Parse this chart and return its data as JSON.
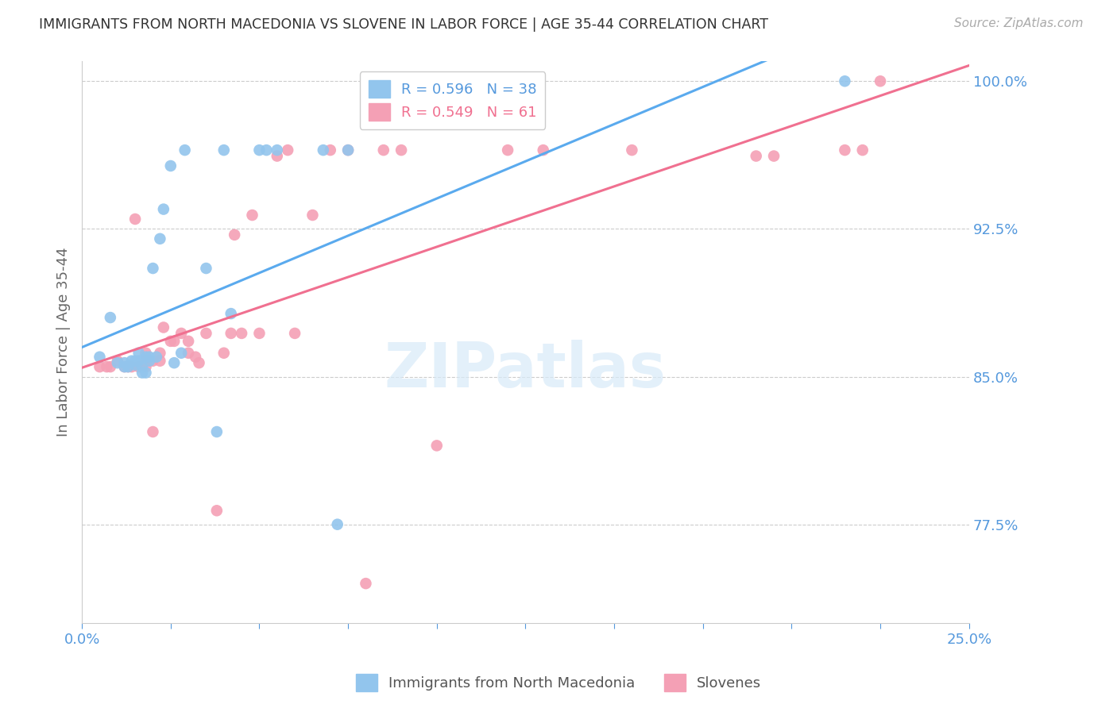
{
  "title": "IMMIGRANTS FROM NORTH MACEDONIA VS SLOVENE IN LABOR FORCE | AGE 35-44 CORRELATION CHART",
  "source": "Source: ZipAtlas.com",
  "ylabel": "In Labor Force | Age 35-44",
  "xlim": [
    0.0,
    0.25
  ],
  "ylim": [
    0.725,
    1.01
  ],
  "yticks": [
    0.775,
    0.85,
    0.925,
    1.0
  ],
  "ytick_labels": [
    "77.5%",
    "85.0%",
    "92.5%",
    "100.0%"
  ],
  "xticks": [
    0.0,
    0.025,
    0.05,
    0.075,
    0.1,
    0.125,
    0.15,
    0.175,
    0.2,
    0.225,
    0.25
  ],
  "xtick_labels": [
    "0.0%",
    "",
    "",
    "",
    "",
    "",
    "",
    "",
    "",
    "",
    "25.0%"
  ],
  "blue_color": "#92C5ED",
  "pink_color": "#F4A0B5",
  "line_blue": "#5AAAEE",
  "line_pink": "#F07090",
  "tick_label_color": "#5599DD",
  "watermark_color": "#D8EAF8",
  "watermark": "ZIPatlas",
  "legend_R_blue": "0.596",
  "legend_N_blue": "38",
  "legend_R_pink": "0.549",
  "legend_N_pink": "61",
  "legend_text_blue": "#5599DD",
  "legend_text_pink": "#F07090",
  "blue_scatter_x": [
    0.005,
    0.008,
    0.01,
    0.012,
    0.012,
    0.013,
    0.014,
    0.015,
    0.015,
    0.016,
    0.016,
    0.017,
    0.017,
    0.018,
    0.018,
    0.019,
    0.019,
    0.02,
    0.021,
    0.022,
    0.023,
    0.025,
    0.026,
    0.028,
    0.029,
    0.035,
    0.038,
    0.04,
    0.042,
    0.05,
    0.052,
    0.055,
    0.068,
    0.072,
    0.075,
    0.215
  ],
  "blue_scatter_y": [
    0.86,
    0.88,
    0.857,
    0.857,
    0.855,
    0.855,
    0.858,
    0.856,
    0.858,
    0.858,
    0.862,
    0.855,
    0.852,
    0.86,
    0.852,
    0.858,
    0.86,
    0.905,
    0.86,
    0.92,
    0.935,
    0.957,
    0.857,
    0.862,
    0.965,
    0.905,
    0.822,
    0.965,
    0.882,
    0.965,
    0.965,
    0.965,
    0.965,
    0.775,
    0.965,
    1.0
  ],
  "pink_scatter_x": [
    0.005,
    0.007,
    0.008,
    0.01,
    0.012,
    0.013,
    0.014,
    0.015,
    0.016,
    0.018,
    0.018,
    0.018,
    0.02,
    0.02,
    0.022,
    0.022,
    0.023,
    0.025,
    0.026,
    0.028,
    0.03,
    0.03,
    0.032,
    0.033,
    0.035,
    0.038,
    0.04,
    0.042,
    0.043,
    0.045,
    0.048,
    0.05,
    0.055,
    0.058,
    0.06,
    0.065,
    0.07,
    0.075,
    0.08,
    0.085,
    0.09,
    0.1,
    0.12,
    0.13,
    0.155,
    0.19,
    0.195,
    0.215,
    0.22,
    0.225
  ],
  "pink_scatter_y": [
    0.855,
    0.855,
    0.855,
    0.858,
    0.855,
    0.855,
    0.855,
    0.93,
    0.855,
    0.855,
    0.858,
    0.862,
    0.822,
    0.858,
    0.862,
    0.858,
    0.875,
    0.868,
    0.868,
    0.872,
    0.862,
    0.868,
    0.86,
    0.857,
    0.872,
    0.782,
    0.862,
    0.872,
    0.922,
    0.872,
    0.932,
    0.872,
    0.962,
    0.965,
    0.872,
    0.932,
    0.965,
    0.965,
    0.745,
    0.965,
    0.965,
    0.815,
    0.965,
    0.965,
    0.965,
    0.962,
    0.962,
    0.965,
    0.965,
    1.0
  ]
}
